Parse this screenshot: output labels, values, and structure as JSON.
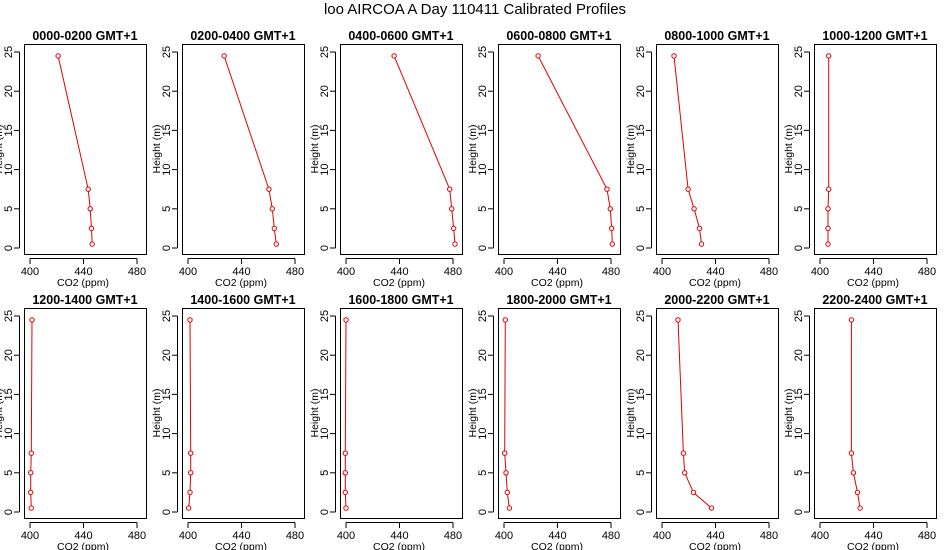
{
  "figure_title": "loo AIRCOA A  Day 110411  Calibrated Profiles",
  "chart_data": {
    "type": "line",
    "title": "loo AIRCOA A  Day 110411  Calibrated Profiles",
    "xlabel": "CO2 (ppm)",
    "ylabel": "Height (m)",
    "xlim": [
      400,
      480
    ],
    "ylim": [
      0,
      25
    ],
    "xticks": [
      "400",
      "440",
      "480"
    ],
    "yticks": [
      "0",
      "5",
      "10",
      "15",
      "20",
      "25"
    ],
    "grid": false,
    "line_color": "#e00000",
    "heights": [
      0.5,
      2.5,
      5,
      7.5,
      24.5
    ],
    "panels": [
      {
        "title": "0000-0200 GMT+1",
        "co2": [
          446.5,
          446.0,
          445.0,
          443.5,
          421.0
        ]
      },
      {
        "title": "0200-0400 GMT+1",
        "co2": [
          466.0,
          464.5,
          463.0,
          460.5,
          427.0
        ]
      },
      {
        "title": "0400-0600 GMT+1",
        "co2": [
          481.5,
          480.5,
          479.0,
          477.5,
          436.0
        ]
      },
      {
        "title": "0600-0800 GMT+1",
        "co2": [
          481.0,
          480.5,
          479.5,
          477.0,
          425.5
        ]
      },
      {
        "title": "0800-1000 GMT+1",
        "co2": [
          429.5,
          428.0,
          424.0,
          419.5,
          409.0
        ]
      },
      {
        "title": "1000-1200 GMT+1",
        "co2": [
          406.0,
          406.0,
          406.0,
          406.5,
          406.5
        ]
      },
      {
        "title": "1200-1400 GMT+1",
        "co2": [
          401.0,
          400.5,
          400.5,
          401.0,
          401.5
        ]
      },
      {
        "title": "1400-1600 GMT+1",
        "co2": [
          400.5,
          401.5,
          402.0,
          402.0,
          401.5
        ]
      },
      {
        "title": "1600-1800 GMT+1",
        "co2": [
          400.0,
          399.5,
          399.5,
          399.5,
          400.0
        ]
      },
      {
        "title": "1800-2000 GMT+1",
        "co2": [
          404.0,
          402.5,
          401.5,
          400.5,
          401.0
        ]
      },
      {
        "title": "2000-2200 GMT+1",
        "co2": [
          437.0,
          423.5,
          417.0,
          416.0,
          412.0
        ]
      },
      {
        "title": "2200-2400 GMT+1",
        "co2": [
          430.0,
          428.0,
          425.0,
          423.5,
          423.5
        ]
      }
    ]
  }
}
